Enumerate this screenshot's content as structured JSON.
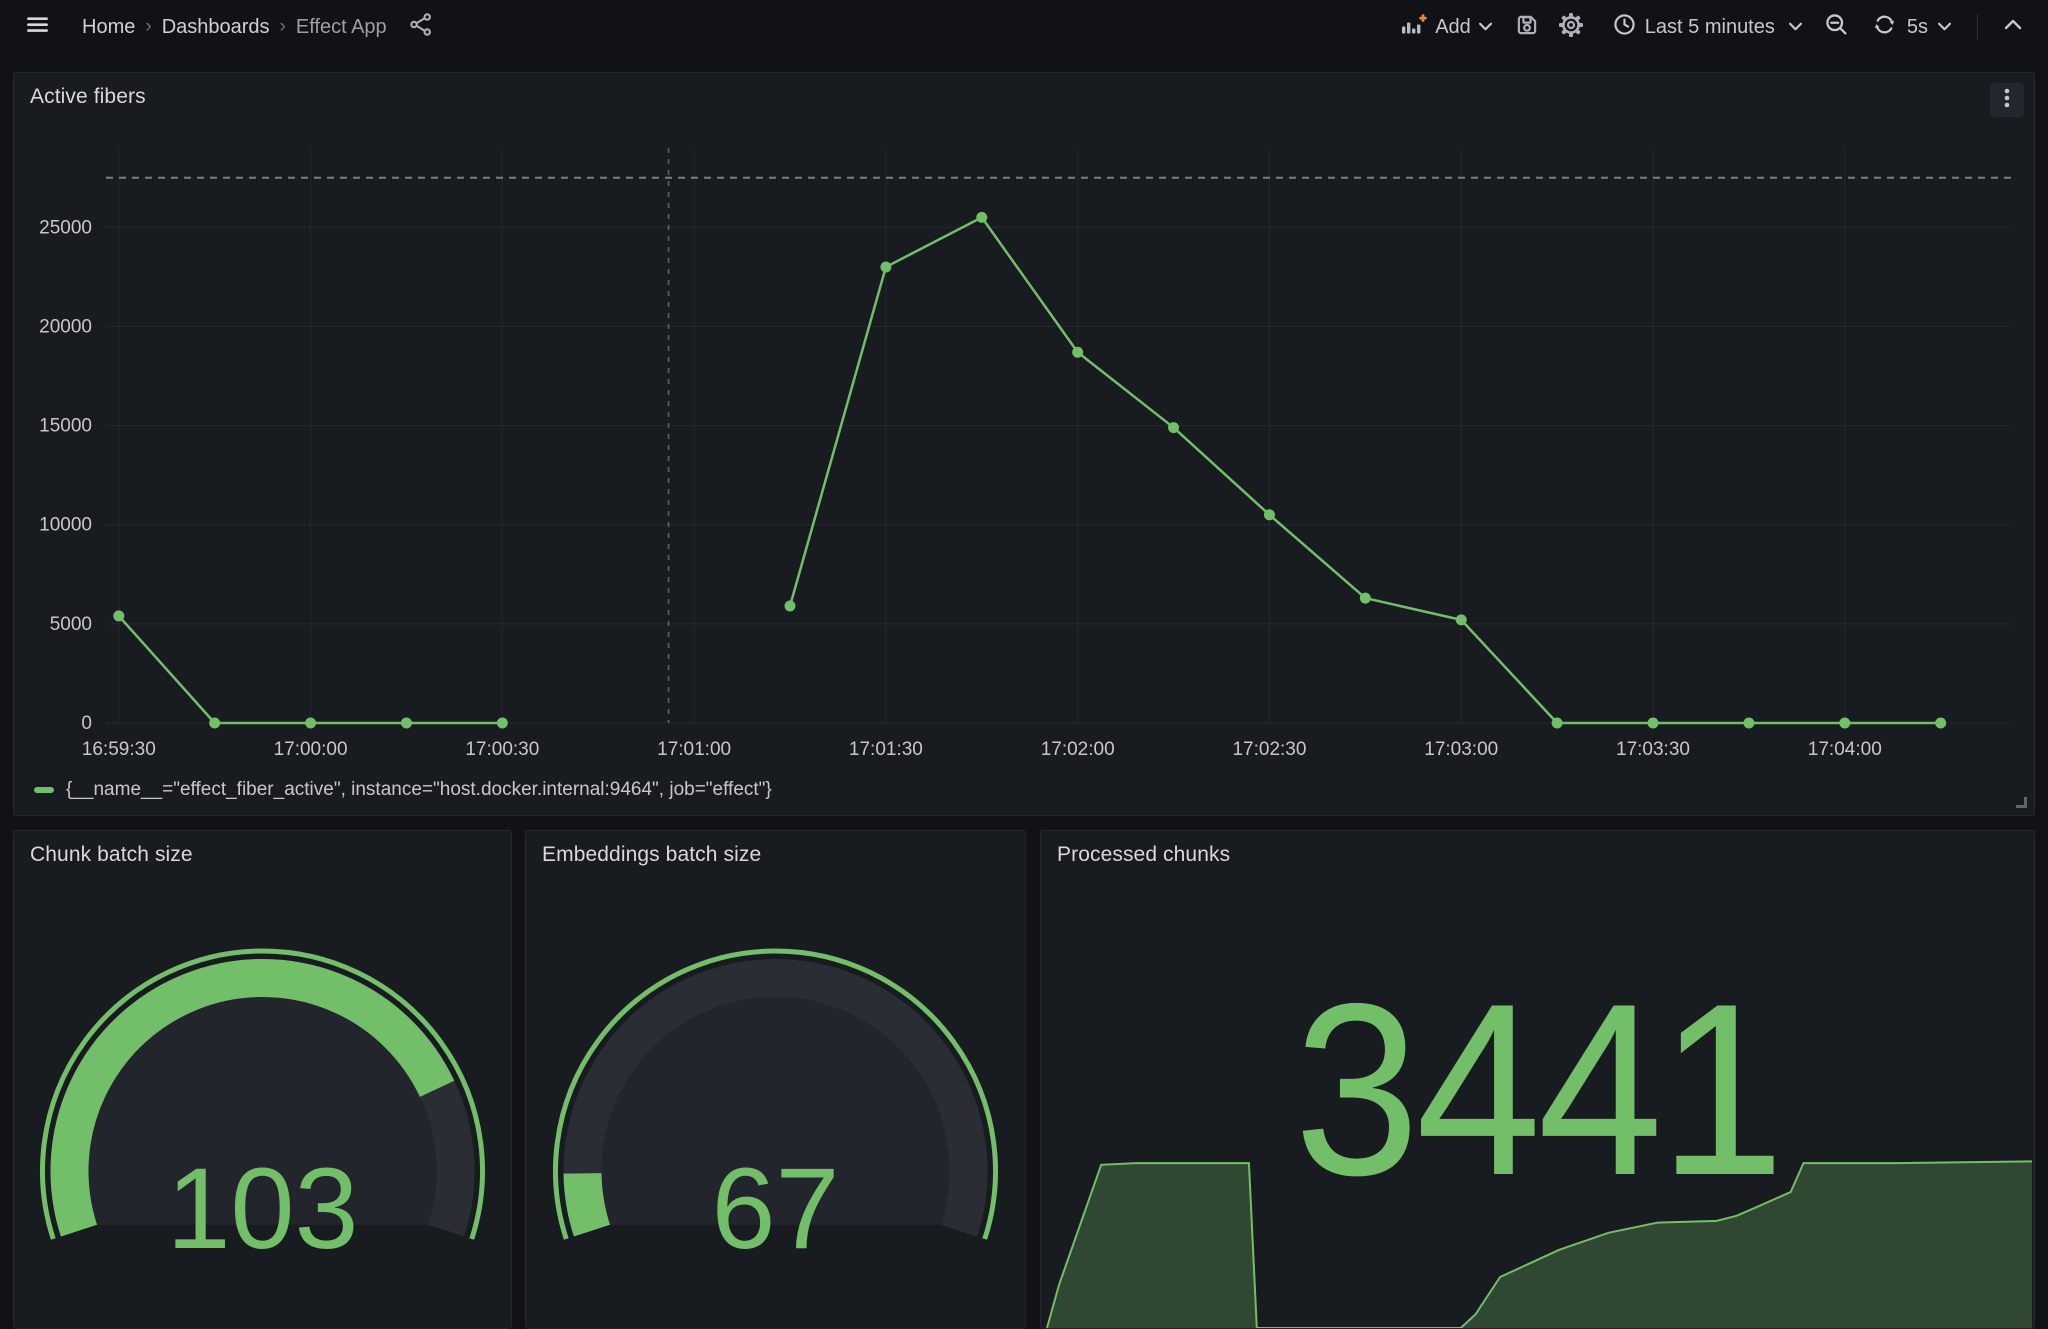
{
  "nav": {
    "breadcrumb": [
      {
        "label": "Home"
      },
      {
        "label": "Dashboards"
      },
      {
        "label": "Effect App"
      }
    ],
    "add_label": "Add",
    "time_range_label": "Last 5 minutes",
    "refresh_interval_label": "5s"
  },
  "colors": {
    "accent_green": "#73BF69",
    "page_bg": "#111217",
    "panel_bg": "#181b1f",
    "text_primary": "#d8d9da",
    "text_secondary": "#9d9fa5",
    "axis_text": "#c7c8ce",
    "orange_plus": "#e8873a"
  },
  "panels": {
    "active_fibers": {
      "title": "Active fibers",
      "legend": "{__name__=\"effect_fiber_active\", instance=\"host.docker.internal:9464\", job=\"effect\"}"
    },
    "chunk_batch": {
      "title": "Chunk batch size",
      "value": "103"
    },
    "embeddings_batch": {
      "title": "Embeddings batch size",
      "value": "67"
    },
    "processed_chunks": {
      "title": "Processed chunks",
      "value": "3441"
    }
  },
  "chart_data": [
    {
      "panel": "Active fibers",
      "type": "line",
      "series": [
        {
          "name": "{__name__=\"effect_fiber_active\", instance=\"host.docker.internal:9464\", job=\"effect\"}",
          "color": "#73BF69",
          "start_time": "16:59:30",
          "step_seconds": 15,
          "values": [
            5400,
            0,
            0,
            0,
            0,
            null,
            null,
            5900,
            23000,
            25500,
            18700,
            14900,
            10500,
            6300,
            5200,
            0,
            0,
            0,
            0,
            0
          ]
        }
      ],
      "x_tick_labels": [
        "16:59:30",
        "17:00:00",
        "17:00:30",
        "17:01:00",
        "17:01:30",
        "17:02:00",
        "17:02:30",
        "17:03:00",
        "17:03:30",
        "17:04:00"
      ],
      "x_tick_step_seconds": 30,
      "x_window_seconds": [
        -2,
        296
      ],
      "y_ticks": [
        0,
        5000,
        10000,
        15000,
        20000,
        25000
      ],
      "ylim": [
        0,
        29000
      ],
      "threshold_value": 27500,
      "annotation_time_seconds": 86,
      "grid": true,
      "legend_position": "bottom"
    },
    {
      "panel": "Chunk batch size",
      "type": "gauge",
      "value": 103,
      "fraction": 0.8,
      "color": "#73BF69"
    },
    {
      "panel": "Embeddings batch size",
      "type": "gauge",
      "value": 67,
      "fraction": 0.08,
      "color": "#73BF69"
    },
    {
      "panel": "Processed chunks",
      "type": "stat",
      "value": 3441,
      "color": "#73BF69",
      "sparkline": {
        "points": [
          [
            0,
            0
          ],
          [
            0.012,
            0.25
          ],
          [
            0.055,
            0.96
          ],
          [
            0.09,
            0.97
          ],
          [
            0.205,
            0.97
          ],
          [
            0.213,
            0
          ],
          [
            0.42,
            0
          ],
          [
            0.435,
            0.08
          ],
          [
            0.46,
            0.3
          ],
          [
            0.52,
            0.46
          ],
          [
            0.57,
            0.56
          ],
          [
            0.62,
            0.62
          ],
          [
            0.68,
            0.63
          ],
          [
            0.7,
            0.66
          ],
          [
            0.72,
            0.71
          ],
          [
            0.755,
            0.8
          ],
          [
            0.768,
            0.97
          ],
          [
            0.86,
            0.97
          ],
          [
            1.0,
            0.98
          ]
        ]
      }
    }
  ]
}
